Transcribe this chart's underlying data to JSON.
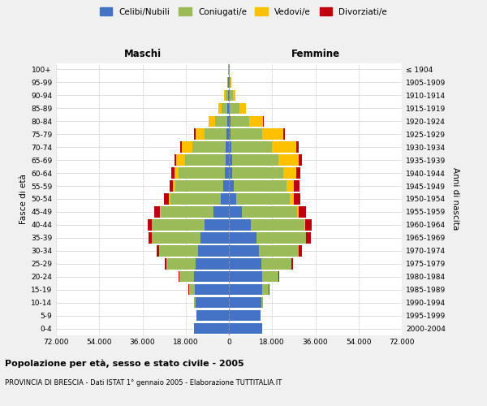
{
  "age_groups": [
    "0-4",
    "5-9",
    "10-14",
    "15-19",
    "20-24",
    "25-29",
    "30-34",
    "35-39",
    "40-44",
    "45-49",
    "50-54",
    "55-59",
    "60-64",
    "65-69",
    "70-74",
    "75-79",
    "80-84",
    "85-89",
    "90-94",
    "95-99",
    "100+"
  ],
  "birth_years": [
    "2000-2004",
    "1995-1999",
    "1990-1994",
    "1985-1989",
    "1980-1984",
    "1975-1979",
    "1970-1974",
    "1965-1969",
    "1960-1964",
    "1955-1959",
    "1950-1954",
    "1945-1949",
    "1940-1944",
    "1935-1939",
    "1930-1934",
    "1925-1929",
    "1920-1924",
    "1915-1919",
    "1910-1914",
    "1905-1909",
    "≤ 1904"
  ],
  "male_celibe": [
    14500,
    13500,
    13800,
    14200,
    14500,
    14000,
    13000,
    12000,
    10000,
    6500,
    3500,
    2200,
    1800,
    1400,
    1200,
    1000,
    800,
    700,
    500,
    300,
    120
  ],
  "male_coniugato": [
    20,
    100,
    700,
    2500,
    6000,
    12000,
    16000,
    20000,
    22000,
    22000,
    21000,
    20000,
    19000,
    17000,
    14000,
    9000,
    5000,
    2500,
    1000,
    400,
    100
  ],
  "male_vedovo": [
    0,
    1,
    2,
    5,
    10,
    20,
    40,
    80,
    150,
    250,
    500,
    1000,
    2000,
    3500,
    4500,
    4000,
    2500,
    1200,
    400,
    100,
    20
  ],
  "male_divorziato": [
    2,
    5,
    30,
    100,
    300,
    600,
    1000,
    1500,
    1800,
    2200,
    2000,
    1500,
    1200,
    900,
    700,
    400,
    200,
    100,
    50,
    20,
    5
  ],
  "female_nubile": [
    14000,
    13200,
    13500,
    13800,
    14000,
    13500,
    12500,
    11500,
    9000,
    5500,
    3000,
    2000,
    1500,
    1200,
    1000,
    800,
    600,
    500,
    350,
    200,
    80
  ],
  "female_coniugata": [
    25,
    120,
    800,
    2800,
    6500,
    12500,
    16500,
    20500,
    22500,
    23000,
    22500,
    22000,
    21000,
    19500,
    17000,
    13000,
    8000,
    4000,
    1500,
    500,
    100
  ],
  "female_vedova": [
    0,
    1,
    3,
    8,
    20,
    50,
    100,
    200,
    400,
    700,
    1500,
    3000,
    5500,
    8500,
    10000,
    9000,
    5500,
    2500,
    800,
    200,
    50
  ],
  "female_divorziata": [
    2,
    8,
    40,
    150,
    400,
    800,
    1300,
    2000,
    2500,
    3000,
    2800,
    2300,
    1800,
    1300,
    1000,
    600,
    300,
    150,
    60,
    20,
    5
  ],
  "colors": {
    "celibe": "#4472C4",
    "coniugato": "#9BBB59",
    "vedovo": "#FFC000",
    "divorziato": "#C0000C"
  },
  "xlim": 72000,
  "title": "Popolazione per età, sesso e stato civile - 2005",
  "subtitle": "PROVINCIA DI BRESCIA - Dati ISTAT 1° gennaio 2005 - Elaborazione TUTTITALIA.IT",
  "xlabel_left": "Maschi",
  "xlabel_right": "Femmine",
  "ylabel_left": "Fasce di età",
  "ylabel_right": "Anni di nascita",
  "bg_color": "#f0f0f0",
  "plot_bg": "#ffffff"
}
